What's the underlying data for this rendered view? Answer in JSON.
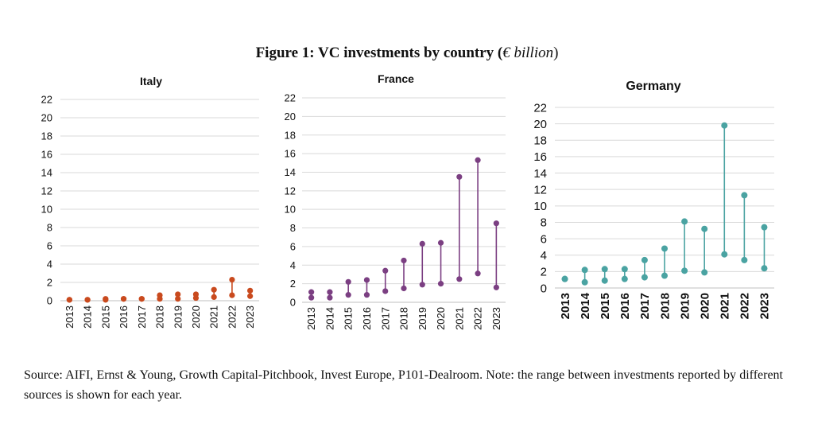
{
  "figure": {
    "title_main": "Figure 1: VC investments by country (",
    "title_unit": "€ billion",
    "title_close": ")"
  },
  "source_text": "Source: AIFI, Ernst & Young, Growth Capital-Pitchbook, Invest Europe, P101-Dealroom. Note: the range between investments reported by different sources is shown for each year.",
  "chart_data": [
    {
      "type": "dumbbell",
      "title": "Italy",
      "color": "#C94A1E",
      "categories": [
        "2013",
        "2014",
        "2015",
        "2016",
        "2017",
        "2018",
        "2019",
        "2020",
        "2021",
        "2022",
        "2023"
      ],
      "ylim": [
        0,
        22
      ],
      "yticks": [
        0,
        2,
        4,
        6,
        8,
        10,
        12,
        14,
        16,
        18,
        20,
        22
      ],
      "series": [
        {
          "values": [
            0.1,
            0.1,
            0.1,
            0.2,
            0.2,
            0.2,
            0.2,
            0.3,
            0.4,
            0.6,
            0.5
          ]
        },
        {
          "values": [
            0.1,
            0.1,
            0.2,
            0.2,
            0.2,
            0.6,
            0.7,
            0.7,
            1.2,
            2.3,
            1.1
          ]
        }
      ],
      "grid": true
    },
    {
      "type": "dumbbell",
      "title": "France",
      "color": "#7B3F82",
      "categories": [
        "2013",
        "2014",
        "2015",
        "2016",
        "2017",
        "2018",
        "2019",
        "2020",
        "2021",
        "2022",
        "2023"
      ],
      "ylim": [
        0,
        22
      ],
      "yticks": [
        0,
        2,
        4,
        6,
        8,
        10,
        12,
        14,
        16,
        18,
        20,
        22
      ],
      "series": [
        {
          "values": [
            0.5,
            0.5,
            0.8,
            0.8,
            1.2,
            1.5,
            1.9,
            2.0,
            2.5,
            3.1,
            1.6
          ]
        },
        {
          "values": [
            1.1,
            1.1,
            2.2,
            2.4,
            3.4,
            4.5,
            6.3,
            6.4,
            13.5,
            15.3,
            8.5
          ]
        }
      ],
      "grid": true
    },
    {
      "type": "dumbbell",
      "title": "Germany",
      "color": "#4AA3A2",
      "categories": [
        "2013",
        "2014",
        "2015",
        "2016",
        "2017",
        "2018",
        "2019",
        "2020",
        "2021",
        "2022",
        "2023"
      ],
      "ylim": [
        0,
        22
      ],
      "yticks": [
        0,
        2,
        4,
        6,
        8,
        10,
        12,
        14,
        16,
        18,
        20,
        22
      ],
      "series": [
        {
          "values": [
            1.1,
            0.7,
            0.9,
            1.1,
            1.3,
            1.5,
            2.1,
            1.9,
            4.1,
            3.4,
            2.4
          ]
        },
        {
          "values": [
            1.1,
            2.2,
            2.3,
            2.3,
            3.4,
            4.8,
            8.1,
            7.2,
            19.8,
            11.3,
            7.4
          ]
        }
      ],
      "grid": true
    }
  ]
}
